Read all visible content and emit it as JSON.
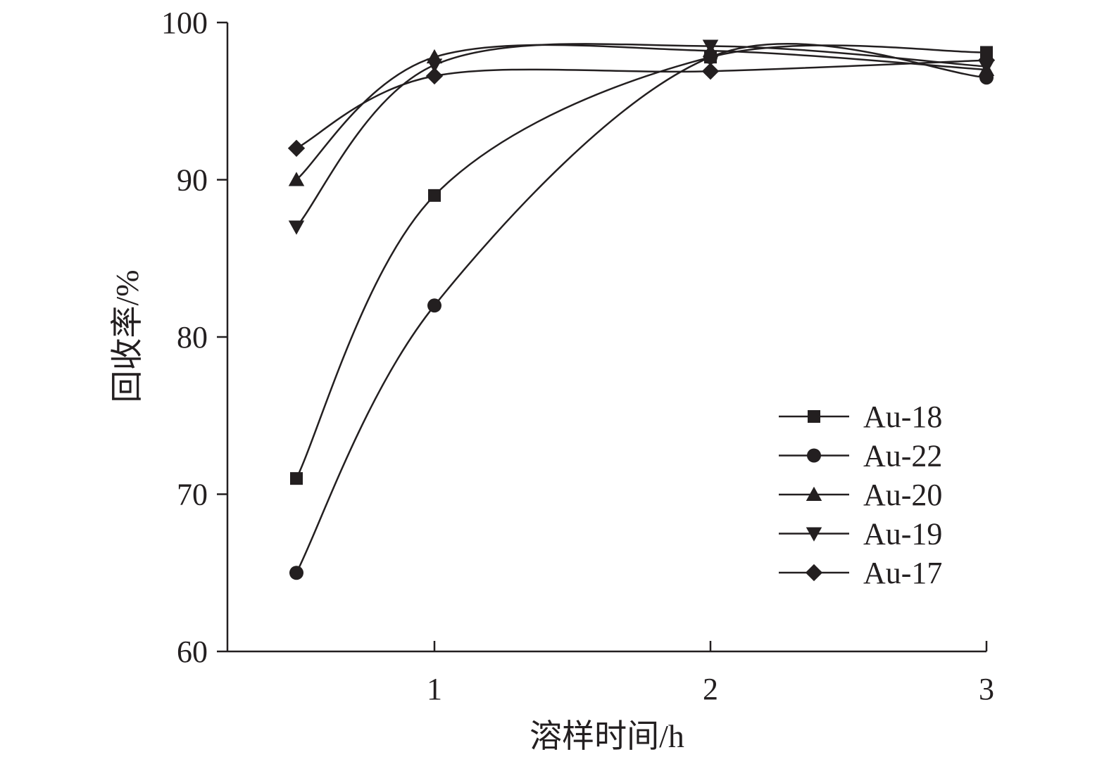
{
  "chart_data": {
    "type": "line",
    "x": [
      0.5,
      1,
      2,
      3
    ],
    "series": [
      {
        "name": "Au-18",
        "marker": "square",
        "values": [
          71,
          89,
          97.8,
          98.1
        ]
      },
      {
        "name": "Au-22",
        "marker": "circle",
        "values": [
          65,
          82,
          97.8,
          96.5
        ]
      },
      {
        "name": "Au-20",
        "marker": "triangle-up",
        "values": [
          90,
          97.8,
          98.2,
          97.0
        ]
      },
      {
        "name": "Au-19",
        "marker": "triangle-down",
        "values": [
          87,
          97.3,
          98.5,
          97.2
        ]
      },
      {
        "name": "Au-17",
        "marker": "diamond",
        "values": [
          92,
          96.6,
          96.9,
          97.6
        ]
      }
    ],
    "xlabel": "溶样时间/h",
    "ylabel": "回收率/%",
    "xticks": [
      1,
      2,
      3
    ],
    "yticks": [
      60,
      70,
      80,
      90,
      100
    ],
    "xlim": [
      0.25,
      3
    ],
    "ylim": [
      60,
      100
    ],
    "grid": false,
    "legend_position": "bottom-right",
    "line_color": "#231f20"
  }
}
